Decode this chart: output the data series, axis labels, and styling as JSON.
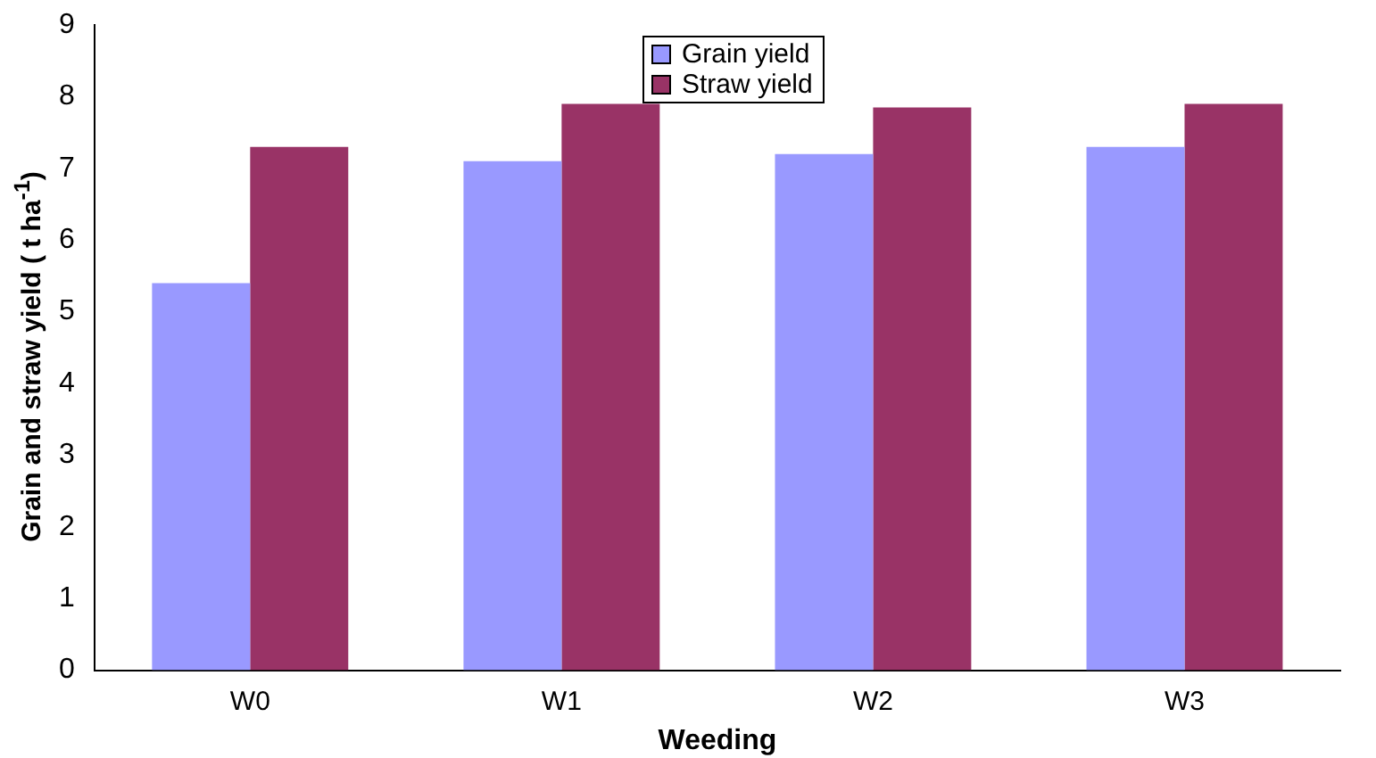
{
  "chart_data": {
    "type": "bar",
    "xlabel": "Weeding",
    "ylabel": "Grain and straw yield ( t ha$^{-1}$)",
    "categories": [
      "W0",
      "W1",
      "W2",
      "W3"
    ],
    "series": [
      {
        "name": "Grain yield",
        "color": "#9999ff",
        "values": [
          5.4,
          7.1,
          7.2,
          7.3
        ]
      },
      {
        "name": "Straw yield",
        "color": "#993366",
        "values": [
          7.3,
          7.9,
          7.85,
          7.9
        ]
      }
    ],
    "ylim": [
      0,
      9
    ],
    "yticks": [
      0,
      1,
      2,
      3,
      4,
      5,
      6,
      7,
      8,
      9
    ],
    "grid": false,
    "legend": "top"
  }
}
